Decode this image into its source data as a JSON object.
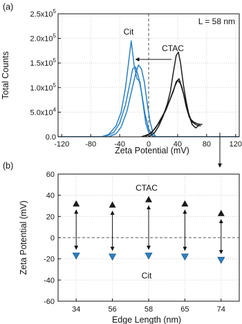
{
  "colors": {
    "ctac": "#1a1a1a",
    "cit": "#2b7fc0",
    "axis": "#111111",
    "grid": "#cfcfcf"
  },
  "chart_data": [
    {
      "panel_label": "(a)",
      "type": "line",
      "xlabel": "Zeta Potential (mV)",
      "ylabel": "Total Counts",
      "xlim": [
        -125,
        125
      ],
      "ylim": [
        0,
        250000
      ],
      "x_ticks": [
        -120,
        -80,
        -40,
        0,
        40,
        80,
        120
      ],
      "x_tick_labels": [
        "-120",
        "-80",
        "-40",
        "0",
        "40",
        "80",
        "120"
      ],
      "y_ticks": [
        0,
        50000,
        100000,
        150000,
        200000,
        250000
      ],
      "y_tick_labels": [
        {
          "mant": "0.0",
          "exp": ""
        },
        {
          "mant": "5.0x10",
          "exp": "4"
        },
        {
          "mant": "1.0x10",
          "exp": "5"
        },
        {
          "mant": "1.5x10",
          "exp": "5"
        },
        {
          "mant": "2.0x10",
          "exp": "5"
        },
        {
          "mant": "2.5x10",
          "exp": "5"
        }
      ],
      "grid": "dotted",
      "annotations": {
        "size_label": "L = 58 nm",
        "cit_label": "Cit",
        "ctac_label": "CTAC"
      },
      "series": [
        {
          "group": "Cit",
          "x": [
            -125,
            -65,
            -55,
            -45,
            -38,
            -32,
            -28,
            -24,
            -20,
            -16,
            -12,
            -8,
            -4,
            0,
            5,
            10,
            15,
            125
          ],
          "y": [
            0,
            0,
            5000,
            22000,
            50000,
            100000,
            148000,
            195000,
            145000,
            118000,
            112000,
            70000,
            28000,
            9000,
            2000,
            0,
            0,
            0
          ]
        },
        {
          "group": "Cit",
          "x": [
            -125,
            -60,
            -48,
            -40,
            -32,
            -26,
            -22,
            -18,
            -14,
            -10,
            -5,
            0,
            5,
            10,
            125
          ],
          "y": [
            0,
            0,
            9000,
            28000,
            65000,
            108000,
            138000,
            142000,
            122000,
            92000,
            46000,
            16000,
            3000,
            0,
            0
          ]
        },
        {
          "group": "Cit",
          "x": [
            -125,
            -55,
            -45,
            -38,
            -30,
            -24,
            -18,
            -14,
            -10,
            -6,
            -2,
            2,
            6,
            10,
            125
          ],
          "y": [
            0,
            0,
            6000,
            20000,
            52000,
            90000,
            128000,
            146000,
            138000,
            112000,
            68000,
            30000,
            8000,
            0,
            0
          ]
        },
        {
          "group": "CTAC",
          "x": [
            0,
            8,
            14,
            20,
            26,
            30,
            34,
            38,
            41,
            44,
            48,
            52,
            56,
            60,
            65,
            70
          ],
          "y": [
            0,
            8000,
            22000,
            42000,
            68000,
            92000,
            130000,
            165000,
            172000,
            150000,
            105000,
            70000,
            42000,
            25000,
            18000,
            24000
          ]
        },
        {
          "group": "CTAC",
          "x": [
            -10,
            0,
            8,
            16,
            24,
            30,
            36,
            40,
            44,
            48,
            52,
            56,
            60,
            66,
            72
          ],
          "y": [
            0,
            5000,
            15000,
            32000,
            55000,
            78000,
            102000,
            115000,
            108000,
            88000,
            60000,
            40000,
            30000,
            24000,
            22000
          ]
        },
        {
          "group": "CTAC",
          "x": [
            -5,
            4,
            12,
            20,
            28,
            34,
            38,
            42,
            46,
            50,
            54,
            58,
            62,
            68,
            74
          ],
          "y": [
            0,
            8000,
            24000,
            45000,
            70000,
            92000,
            112000,
            118000,
            100000,
            76000,
            52000,
            36000,
            30000,
            26000,
            25000
          ]
        }
      ]
    },
    {
      "panel_label": "(b)",
      "type": "scatter",
      "xlabel": "Edge Length (nm)",
      "ylabel": "Zeta Potential (mV)",
      "categories": [
        "34",
        "56",
        "58",
        "65",
        "74"
      ],
      "ylim": [
        -60,
        60
      ],
      "y_ticks": [
        60,
        40,
        20,
        0,
        -20,
        -40,
        -60
      ],
      "y_tick_labels": [
        "60",
        "40",
        "20",
        "0",
        "-20",
        "-40",
        "-60"
      ],
      "grid": "dotted",
      "annotations": {
        "ctac_label": "CTAC",
        "cit_label": "Cit"
      },
      "series": [
        {
          "name": "CTAC",
          "values": [
            32,
            31,
            36,
            32,
            23
          ]
        },
        {
          "name": "Cit",
          "values": [
            -17,
            -18,
            -17,
            -18,
            -21
          ]
        }
      ]
    }
  ]
}
